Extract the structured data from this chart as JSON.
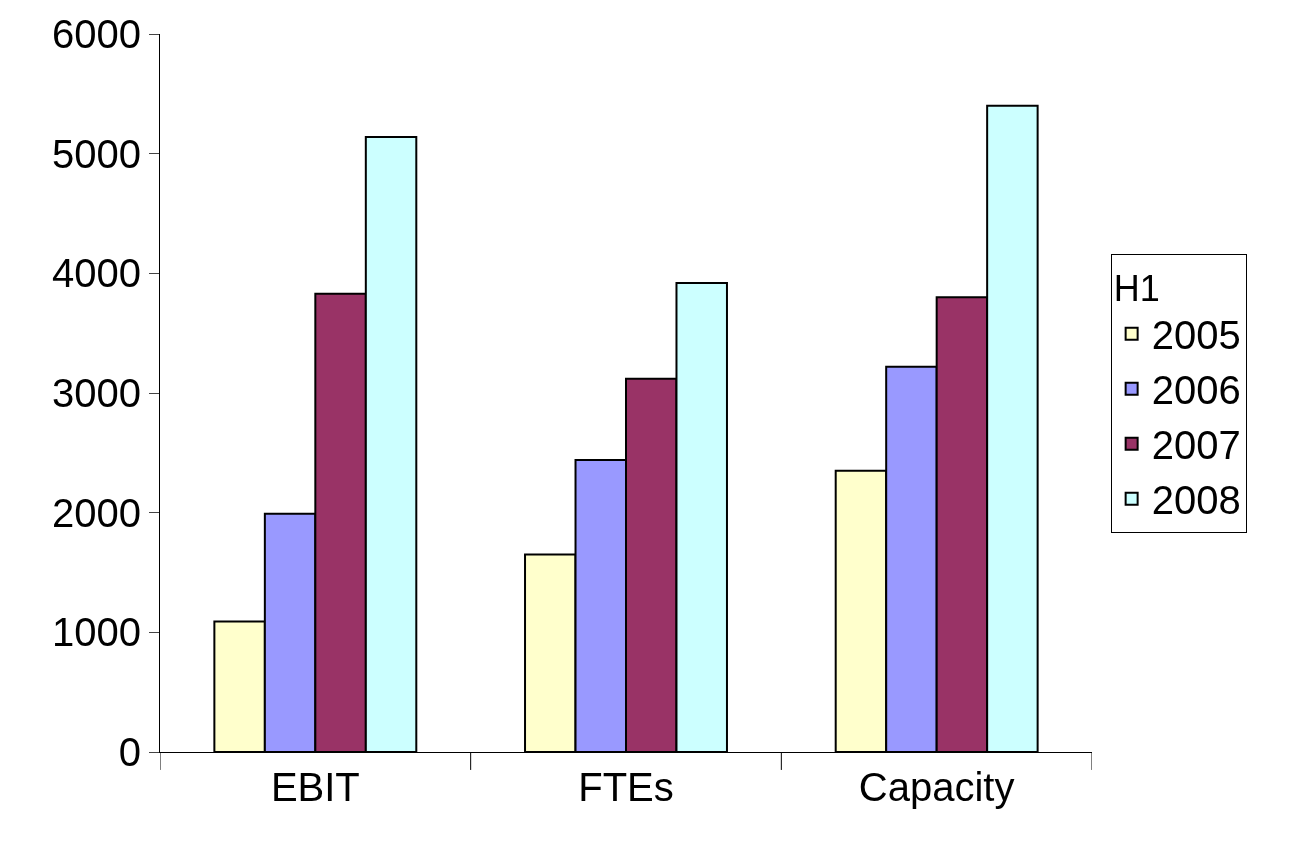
{
  "chart_data": {
    "type": "bar",
    "categories": [
      "EBIT",
      "FTEs",
      "Capacity"
    ],
    "series": [
      {
        "name": "2005",
        "color": "#ffffcc",
        "values": [
          1090,
          1650,
          2350
        ]
      },
      {
        "name": "2006",
        "color": "#9999ff",
        "values": [
          1990,
          2440,
          3220
        ]
      },
      {
        "name": "2007",
        "color": "#993366",
        "values": [
          3830,
          3120,
          3800
        ]
      },
      {
        "name": "2008",
        "color": "#ccffff",
        "values": [
          5140,
          3920,
          5400
        ]
      }
    ],
    "legend_title": "H1",
    "legend": "right",
    "ylim": [
      0,
      6000
    ],
    "yticks": [
      0,
      1000,
      2000,
      3000,
      4000,
      5000,
      6000
    ]
  }
}
